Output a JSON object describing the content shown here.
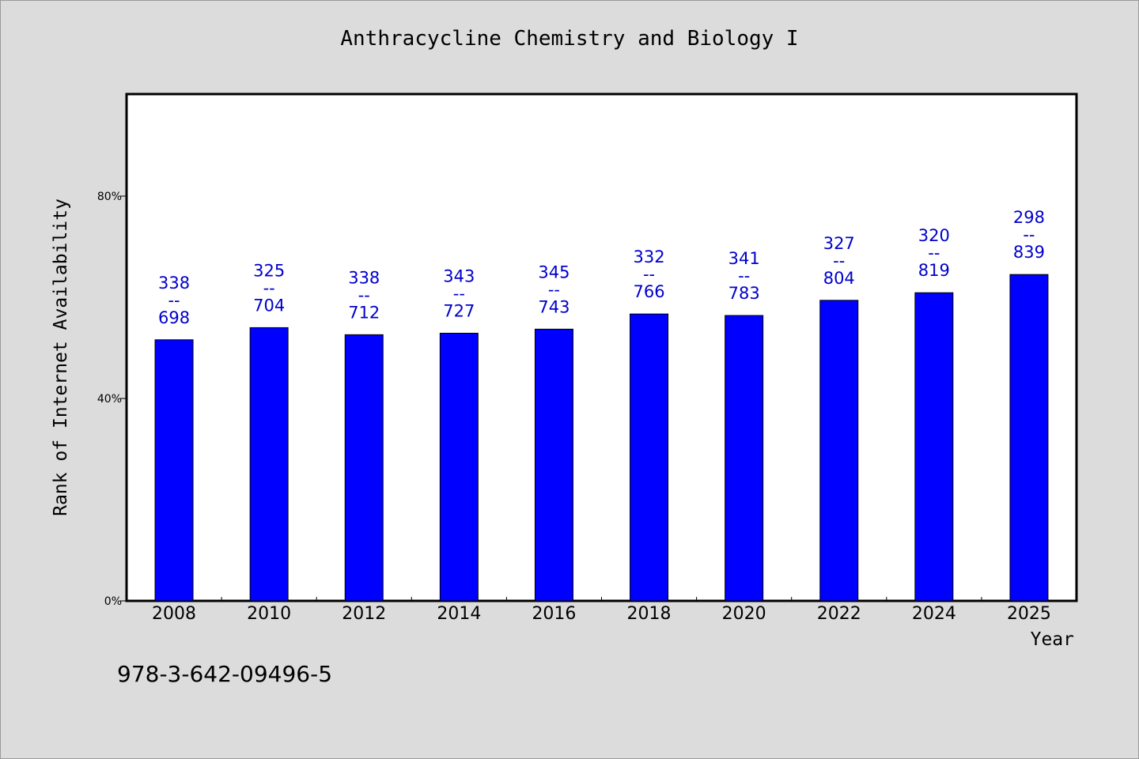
{
  "chart_data": {
    "type": "bar",
    "title": "Anthracycline Chemistry and Biology I",
    "xlabel": "Year",
    "ylabel": "Rank of Internet Availability",
    "ylim": [
      0,
      100
    ],
    "yticks": [
      0,
      40,
      80
    ],
    "ytick_labels": [
      "0%",
      "40%",
      "80%"
    ],
    "categories": [
      "2008",
      "2010",
      "2012",
      "2014",
      "2016",
      "2018",
      "2020",
      "2022",
      "2024",
      "2025"
    ],
    "values": [
      51.6,
      54.0,
      52.6,
      52.9,
      53.7,
      56.7,
      56.4,
      59.4,
      60.9,
      64.5
    ],
    "label_top": [
      "338",
      "325",
      "338",
      "343",
      "345",
      "332",
      "341",
      "327",
      "320",
      "298"
    ],
    "label_sep": "--",
    "label_bottom": [
      "698",
      "704",
      "712",
      "727",
      "743",
      "766",
      "783",
      "804",
      "819",
      "839"
    ],
    "bar_color": "#0000ff",
    "label_color": "#0000cc",
    "grid": false,
    "legend": false
  },
  "footer": {
    "isbn": "978-3-642-09496-5"
  }
}
